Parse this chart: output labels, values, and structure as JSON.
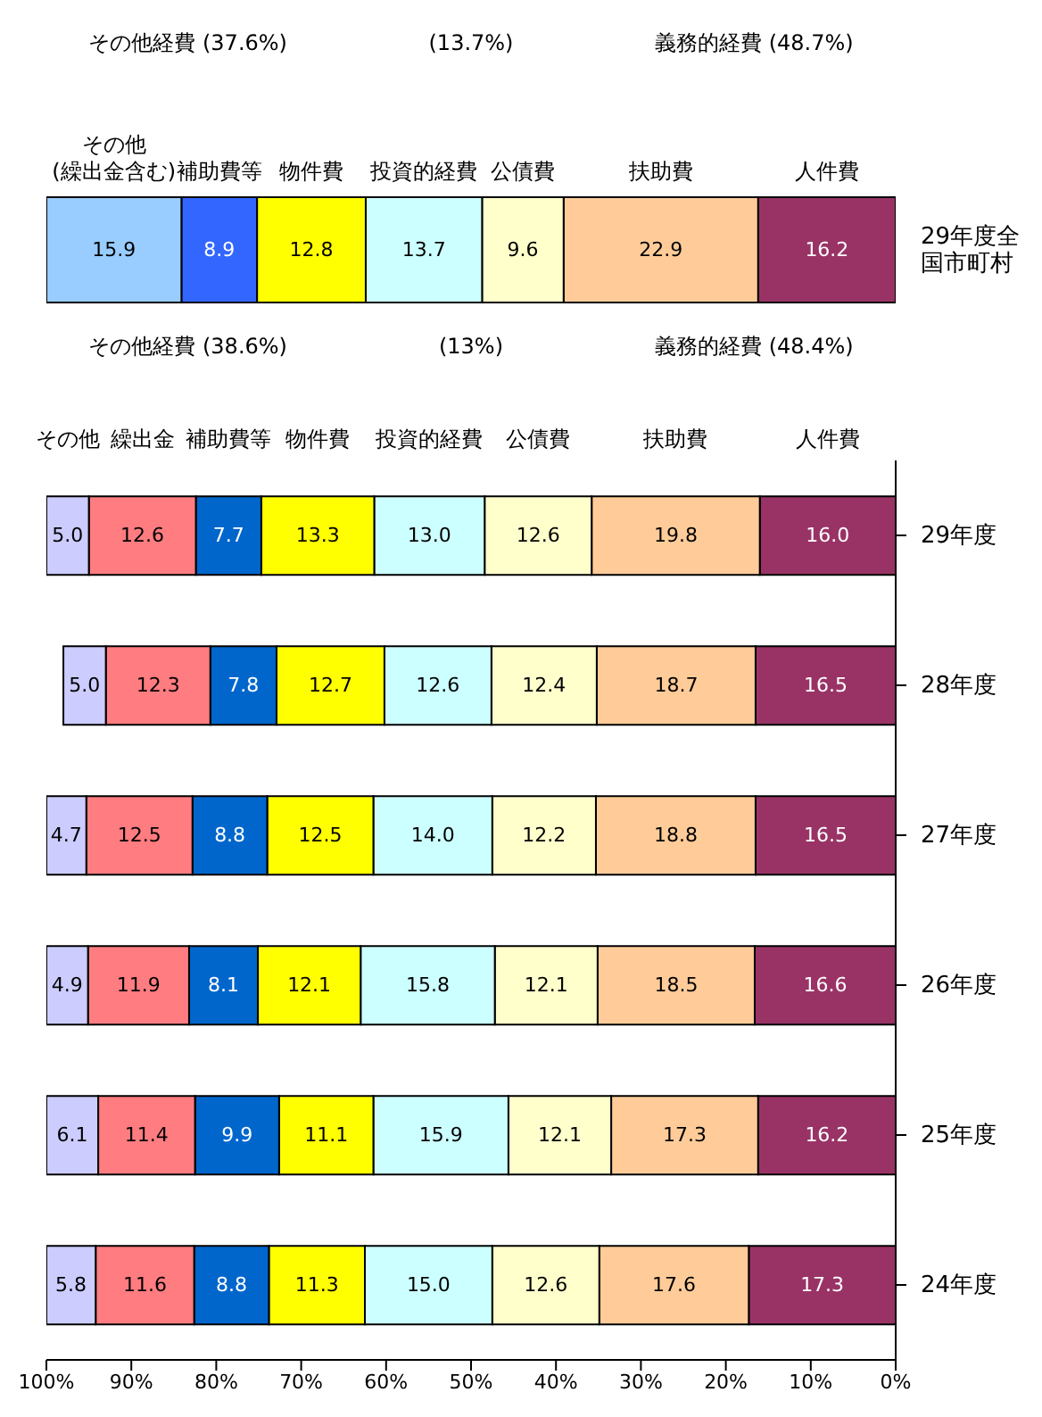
{
  "chart_data": [
    {
      "type": "bar",
      "stacked": true,
      "orientation": "horizontal",
      "categories": [
        "29年度全国市町村"
      ],
      "series": [
        {
          "name": "人件費",
          "color": "#993366",
          "values": [
            16.2
          ],
          "value_labels": [
            "16.2"
          ]
        },
        {
          "name": "扶助費",
          "color": "#ffcc99",
          "values": [
            22.9
          ],
          "value_labels": [
            "22.9"
          ]
        },
        {
          "name": "公債費",
          "color": "#ffffcc",
          "values": [
            9.6
          ],
          "value_labels": [
            "9.6"
          ]
        },
        {
          "name": "投資的経費",
          "color": "#ccffff",
          "values": [
            13.7
          ],
          "value_labels": [
            "13.7"
          ]
        },
        {
          "name": "物件費",
          "color": "#ffff00",
          "values": [
            12.8
          ],
          "value_labels": [
            "12.8"
          ]
        },
        {
          "name": "補助費等",
          "color": "#3366ff",
          "values": [
            8.9
          ],
          "value_labels": [
            "8.9"
          ]
        },
        {
          "name": "その他\n(繰出金含む)",
          "color": "#99ccff",
          "values": [
            15.9
          ],
          "value_labels": [
            "15.9"
          ]
        }
      ],
      "xlim": [
        100,
        0
      ],
      "tick_labels": "y",
      "legend": false,
      "annotations": [
        "その他経費 (37.6%)",
        "(13.7%)",
        "義務的経費 (48.7%)"
      ]
    },
    {
      "type": "bar",
      "stacked": true,
      "orientation": "horizontal",
      "categories": [
        "29年度",
        "28年度",
        "27年度",
        "26年度",
        "25年度",
        "24年度"
      ],
      "series": [
        {
          "name": "人件費",
          "color": "#993366",
          "values": [
            16.0,
            16.5,
            16.5,
            16.6,
            16.2,
            17.3
          ],
          "value_labels": [
            "16.0",
            "16.5",
            "16.5",
            "16.6",
            "16.2",
            "17.3"
          ]
        },
        {
          "name": "扶助費",
          "color": "#ffcc99",
          "values": [
            19.8,
            18.7,
            18.8,
            18.5,
            17.3,
            17.6
          ],
          "value_labels": [
            "19.8",
            "18.7",
            "18.8",
            "18.5",
            "17.3",
            "17.6"
          ]
        },
        {
          "name": "公債費",
          "color": "#ffffcc",
          "values": [
            12.6,
            12.4,
            12.2,
            12.1,
            12.1,
            12.6
          ],
          "value_labels": [
            "12.6",
            "12.4",
            "12.2",
            "12.1",
            "12.1",
            "12.6"
          ]
        },
        {
          "name": "投資的経費",
          "color": "#ccffff",
          "values": [
            13.0,
            12.6,
            14.0,
            15.8,
            15.9,
            15.0
          ],
          "value_labels": [
            "13.0",
            "12.6",
            "14.0",
            "15.8",
            "15.9",
            "15.0"
          ]
        },
        {
          "name": "物件費",
          "color": "#ffff00",
          "values": [
            13.3,
            12.7,
            12.5,
            12.1,
            11.1,
            11.3
          ],
          "value_labels": [
            "13.3",
            "12.7",
            "12.5",
            "12.1",
            "11.1",
            "11.3"
          ]
        },
        {
          "name": "補助費等",
          "color": "#0066cc",
          "values": [
            7.7,
            7.8,
            8.8,
            8.1,
            9.9,
            8.8
          ],
          "value_labels": [
            "7.7",
            "7.8",
            "8.8",
            "8.1",
            "9.9",
            "8.8"
          ]
        },
        {
          "name": "繰出金",
          "color": "#ff7c80",
          "values": [
            12.6,
            12.3,
            12.5,
            11.9,
            11.4,
            11.6
          ],
          "value_labels": [
            "12.6",
            "12.3",
            "12.5",
            "11.9",
            "11.4",
            "11.6"
          ]
        },
        {
          "name": "その他",
          "color": "#ccccff",
          "values": [
            5.0,
            5.0,
            4.7,
            4.9,
            6.1,
            5.8
          ],
          "value_labels": [
            "5.0",
            "5.0",
            "4.7",
            "4.9",
            "6.1",
            "5.8"
          ]
        }
      ],
      "xlim": [
        100,
        0
      ],
      "xticks": [
        {
          "value": 100,
          "label": "100%"
        },
        {
          "value": 90,
          "label": "90%"
        },
        {
          "value": 80,
          "label": "80%"
        },
        {
          "value": 70,
          "label": "70%"
        },
        {
          "value": 60,
          "label": "60%"
        },
        {
          "value": 50,
          "label": "50%"
        },
        {
          "value": 40,
          "label": "40%"
        },
        {
          "value": 30,
          "label": "30%"
        },
        {
          "value": 20,
          "label": "20%"
        },
        {
          "value": 10,
          "label": "10%"
        },
        {
          "value": 0,
          "label": "0%"
        }
      ],
      "legend": false,
      "annotations": [
        "その他経費 (38.6%)",
        "(13%)",
        "義務的経費 (48.4%)"
      ]
    }
  ]
}
